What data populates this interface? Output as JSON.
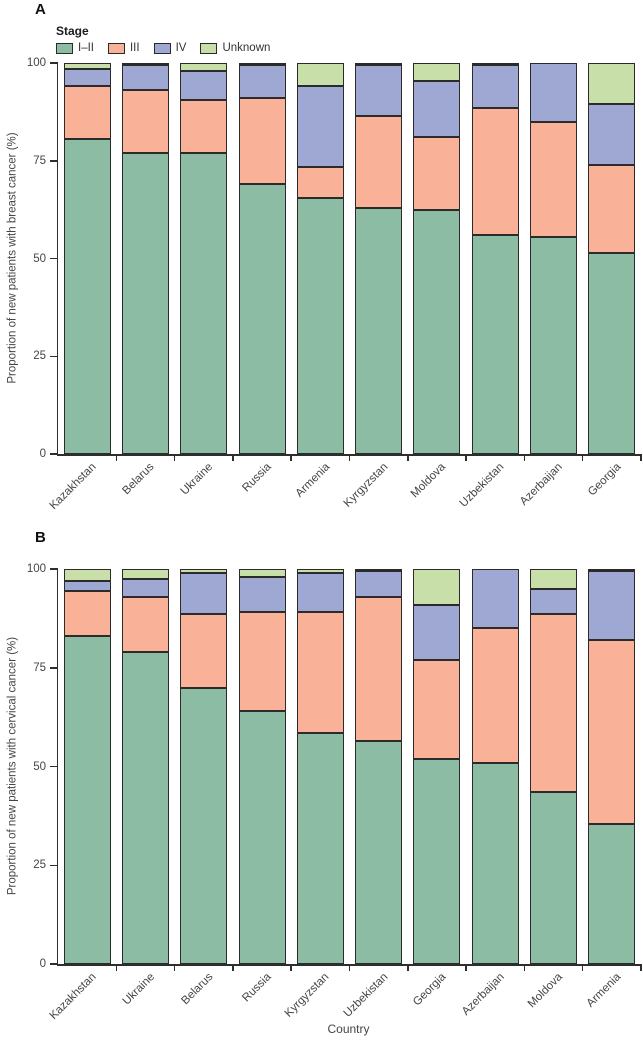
{
  "figure": {
    "legend_title": "Stage",
    "x_axis_title": "Country"
  },
  "colors": {
    "stage_i_ii": "#8CBDA4",
    "stage_iii": "#F9B197",
    "stage_iv": "#9EA8D2",
    "unknown": "#C9DFA9",
    "outline": "#2B2B2B",
    "axis": "#2E2E2E",
    "text": "#454545"
  },
  "chart_data": [
    {
      "id": "panel-a",
      "type": "bar",
      "stacked": true,
      "panel_label": "A",
      "ylabel": "Proportion of new patients with breast cancer (%)",
      "xlabel": "",
      "ylim": [
        0,
        100
      ],
      "y_ticks": [
        0,
        25,
        50,
        75,
        100
      ],
      "grid": false,
      "legend_position": "top-left",
      "categories": [
        "Kazakhstan",
        "Belarus",
        "Ukraine",
        "Russia",
        "Armenia",
        "Kyrgyzstan",
        "Moldova",
        "Uzbekistan",
        "Azerbaijan",
        "Georgia"
      ],
      "series": [
        {
          "name": "I–II",
          "color": "#8CBDA4",
          "values": [
            80.5,
            77,
            77,
            69,
            65.5,
            63,
            62.5,
            56,
            55.5,
            51.5
          ]
        },
        {
          "name": "III",
          "color": "#F9B197",
          "values": [
            13.5,
            16,
            13.5,
            22,
            8,
            23.5,
            18.5,
            32.5,
            29.5,
            22.5
          ]
        },
        {
          "name": "IV",
          "color": "#9EA8D2",
          "values": [
            4.5,
            6.5,
            7.5,
            8.5,
            20.5,
            13,
            14.5,
            11,
            15,
            15.5
          ]
        },
        {
          "name": "Unknown",
          "color": "#C9DFA9",
          "values": [
            1.5,
            0.5,
            2,
            0.5,
            6,
            0.5,
            4.5,
            0.5,
            0,
            10.5
          ]
        }
      ]
    },
    {
      "id": "panel-b",
      "type": "bar",
      "stacked": true,
      "panel_label": "B",
      "ylabel": "Proportion of new patients with cervical cancer (%)",
      "xlabel": "Country",
      "ylim": [
        0,
        100
      ],
      "y_ticks": [
        0,
        25,
        50,
        75,
        100
      ],
      "grid": false,
      "legend_position": "none",
      "categories": [
        "Kazakhstan",
        "Ukraine",
        "Belarus",
        "Russia",
        "Kyrgyzstan",
        "Uzbekistan",
        "Georgia",
        "Azerbaijan",
        "Moldova",
        "Armenia"
      ],
      "series": [
        {
          "name": "I–II",
          "color": "#8CBDA4",
          "values": [
            83,
            79,
            70,
            64,
            58.5,
            56.5,
            52,
            51,
            43.5,
            35.5
          ]
        },
        {
          "name": "III",
          "color": "#F9B197",
          "values": [
            11.5,
            14,
            18.5,
            25,
            30.5,
            36.5,
            25,
            34,
            45,
            46.5
          ]
        },
        {
          "name": "IV",
          "color": "#9EA8D2",
          "values": [
            2.5,
            4.5,
            10.5,
            9,
            10,
            6.5,
            14,
            15,
            6.5,
            17.5
          ]
        },
        {
          "name": "Unknown",
          "color": "#C9DFA9",
          "values": [
            3,
            2.5,
            1,
            2,
            1,
            0.5,
            9,
            0,
            5,
            0.5
          ]
        }
      ]
    }
  ]
}
